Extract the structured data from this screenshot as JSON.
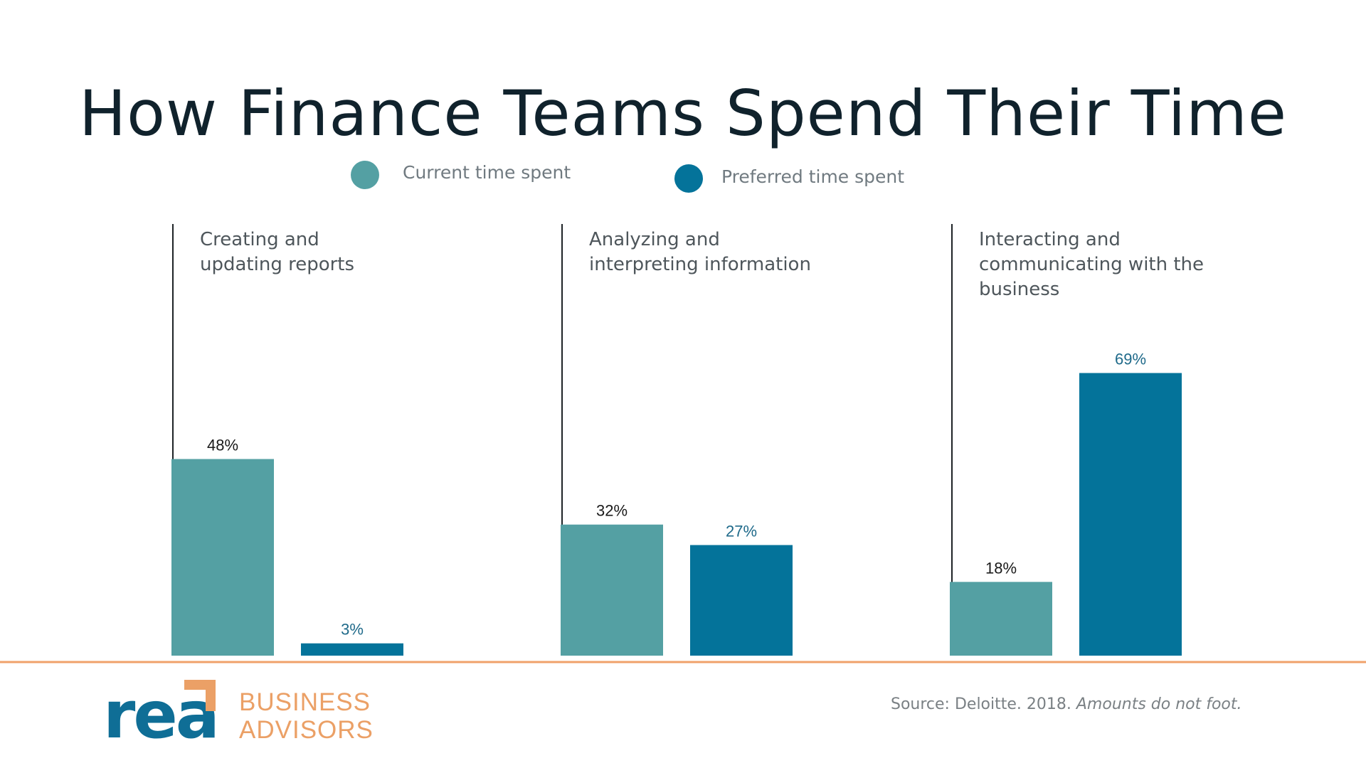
{
  "slide": {
    "title": "How Finance Teams Spend Their Time",
    "source_prefix": "Source: Deloitte. 2018. ",
    "source_note": "Amounts do not foot."
  },
  "logo": {
    "wordmark": "rea",
    "line1": "BUSINESS",
    "line2": "ADVISORS",
    "brand_color": "#0f6e96",
    "accent_color": "#eba066"
  },
  "legend": {
    "items": [
      {
        "label": "Current time spent",
        "color": "#54a0a3"
      },
      {
        "label": "Preferred time spent",
        "color": "#04739a"
      }
    ]
  },
  "chart_data": {
    "type": "bar",
    "title": "How Finance Teams Spend Their Time",
    "categories": [
      [
        "Creating and",
        "updating reports"
      ],
      [
        "Analyzing and",
        "interpreting information"
      ],
      [
        "Interacting and",
        "communicating with the",
        "business"
      ]
    ],
    "series": [
      {
        "name": "Current time spent",
        "values": [
          48,
          32,
          18
        ],
        "labels": [
          "48%",
          "32%",
          "18%"
        ],
        "color": "#54a0a3",
        "label_color": "#1a1a1a"
      },
      {
        "name": "Preferred time spent",
        "values": [
          3,
          27,
          69
        ],
        "labels": [
          "3%",
          "27%",
          "69%"
        ],
        "color": "#04739a",
        "label_color": "#1f6a8a"
      }
    ],
    "ylim": [
      0,
      100
    ],
    "grid": false,
    "legend_position": "top",
    "baseline_color": "#f0a16a"
  }
}
